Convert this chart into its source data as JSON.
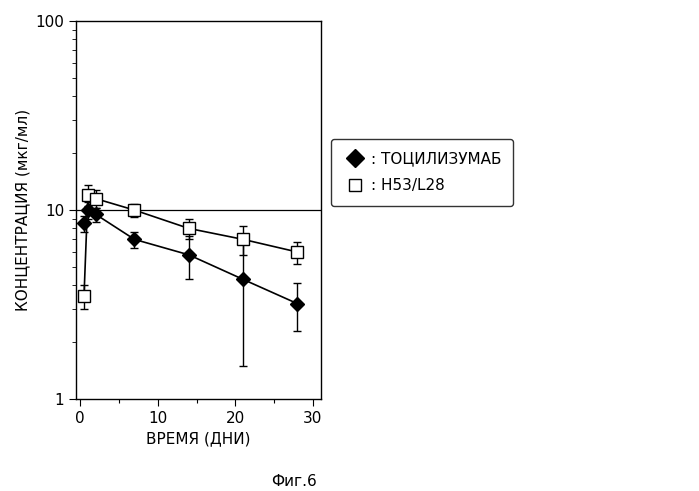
{
  "title": "",
  "xlabel": "ВРЕМЯ (ДНИ)",
  "ylabel": "КОНЦЕНТРАЦИЯ (мкг/мл)",
  "caption": "Фиг.6",
  "ylim": [
    1,
    100
  ],
  "xlim": [
    -0.5,
    31
  ],
  "xticks": [
    0,
    10,
    20,
    30
  ],
  "series1_label": ": ТОЦИЛИЗУМАБ",
  "series2_label": ": H53/L28",
  "series1_x": [
    0.5,
    1,
    2,
    7,
    14,
    21,
    28
  ],
  "series1_y": [
    8.5,
    10.0,
    9.5,
    7.0,
    5.8,
    4.3,
    3.2
  ],
  "series1_yerr_lo": [
    0.8,
    1.0,
    0.8,
    0.7,
    1.5,
    2.8,
    0.9
  ],
  "series1_yerr_hi": [
    0.8,
    1.0,
    0.8,
    0.7,
    1.5,
    2.8,
    0.9
  ],
  "series2_x": [
    0.5,
    1,
    2,
    7,
    14,
    21,
    28
  ],
  "series2_y": [
    3.5,
    12.0,
    11.5,
    10.0,
    8.0,
    7.0,
    6.0
  ],
  "series2_yerr_lo": [
    0.5,
    1.5,
    1.2,
    0.8,
    1.0,
    1.2,
    0.8
  ],
  "series2_yerr_hi": [
    0.5,
    1.5,
    1.2,
    0.8,
    1.0,
    1.2,
    0.8
  ],
  "hline_y": 10.0,
  "line_color": "#000000",
  "bg_color": "#ffffff",
  "font_size": 11,
  "legend_fontsize": 11
}
